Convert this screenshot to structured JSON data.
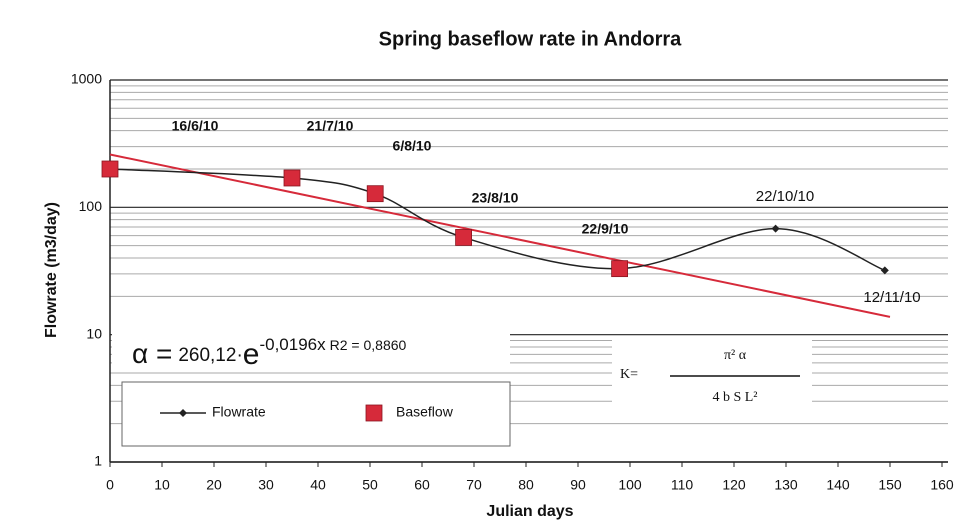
{
  "chart_data": {
    "type": "line",
    "title": "Spring baseflow rate in Andorra",
    "x_label": "Julian days",
    "y_label": "Flowrate (m3/day)",
    "log_y": true,
    "grid": true,
    "xlim": [
      0,
      160
    ],
    "xticks": [
      0,
      10,
      20,
      30,
      40,
      50,
      60,
      70,
      80,
      90,
      100,
      110,
      120,
      130,
      140,
      150,
      160
    ],
    "ylim": [
      1,
      1000
    ],
    "yticks": [
      1,
      10,
      100,
      1000
    ],
    "minor_yticks": [
      2,
      3,
      4,
      5,
      6,
      7,
      8,
      9,
      20,
      30,
      40,
      50,
      60,
      70,
      80,
      90,
      200,
      300,
      400,
      500,
      600,
      700,
      800,
      900
    ],
    "series": [
      {
        "name": "Flowrate",
        "color": "#222222",
        "x": [
          0,
          35,
          51,
          68,
          98,
          128,
          149
        ],
        "values": [
          200,
          170,
          128,
          58,
          33,
          68,
          32
        ]
      },
      {
        "name": "Baseflow",
        "color": "#d62a3a",
        "x": [
          0,
          35,
          51,
          68,
          98
        ],
        "values": [
          200,
          170,
          128,
          58,
          33
        ]
      }
    ],
    "trendline": {
      "color": "#d62a3a",
      "x": [
        0,
        150
      ],
      "values": [
        260.12,
        13.8
      ]
    },
    "annotations": [
      "16/6/10",
      "21/7/10",
      "6/8/10",
      "23/8/10",
      "22/9/10",
      "22/10/10",
      "12/11/10"
    ],
    "equation": {
      "lhs": "α =",
      "coef": "260,12·",
      "base": "e",
      "exponent": "-0,0196x",
      "r2": "R2 = 0,8860"
    },
    "formula": {
      "lhs": "K=",
      "numerator": "π² α",
      "denominator": "4 b S L²"
    }
  }
}
